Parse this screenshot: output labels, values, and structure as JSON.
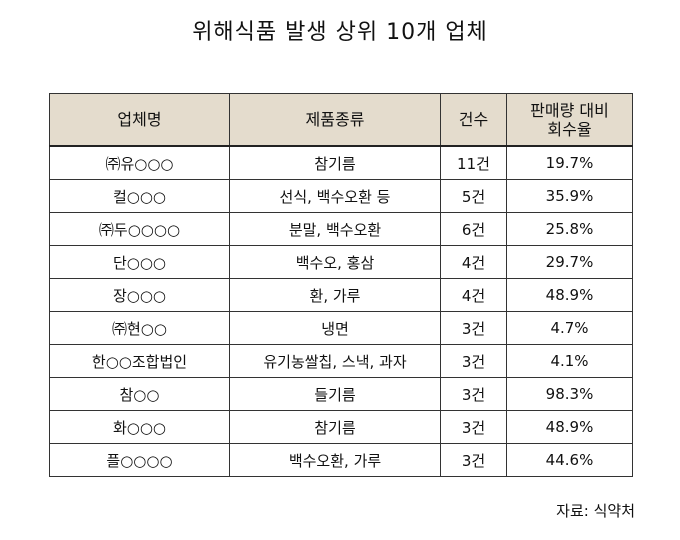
{
  "title": "위해식품 발생 상위 10개 업체",
  "table": {
    "headers": [
      "업체명",
      "제품종류",
      "건수",
      "판매량 대비\n회수율"
    ],
    "rows": [
      [
        "㈜유○○○",
        "참기름",
        "11건",
        "19.7%"
      ],
      [
        "컬○○○",
        "선식, 백수오환 등",
        "5건",
        "35.9%"
      ],
      [
        "㈜두○○○○",
        "분말, 백수오환",
        "6건",
        "25.8%"
      ],
      [
        "단○○○",
        "백수오, 홍삼",
        "4건",
        "29.7%"
      ],
      [
        "장○○○",
        "환, 가루",
        "4건",
        "48.9%"
      ],
      [
        "㈜현○○",
        "냉면",
        "3건",
        "4.7%"
      ],
      [
        "한○○조합법인",
        "유기농쌀칩, 스낵, 과자",
        "3건",
        "4.1%"
      ],
      [
        "참○○",
        "들기름",
        "3건",
        "98.3%"
      ],
      [
        "화○○○",
        "참기름",
        "3건",
        "48.9%"
      ],
      [
        "플○○○○",
        "백수오환, 가루",
        "3건",
        "44.6%"
      ]
    ]
  },
  "source": "자료: 식약처",
  "colors": {
    "header_bg": "#e4dccd",
    "border": "#333333"
  }
}
